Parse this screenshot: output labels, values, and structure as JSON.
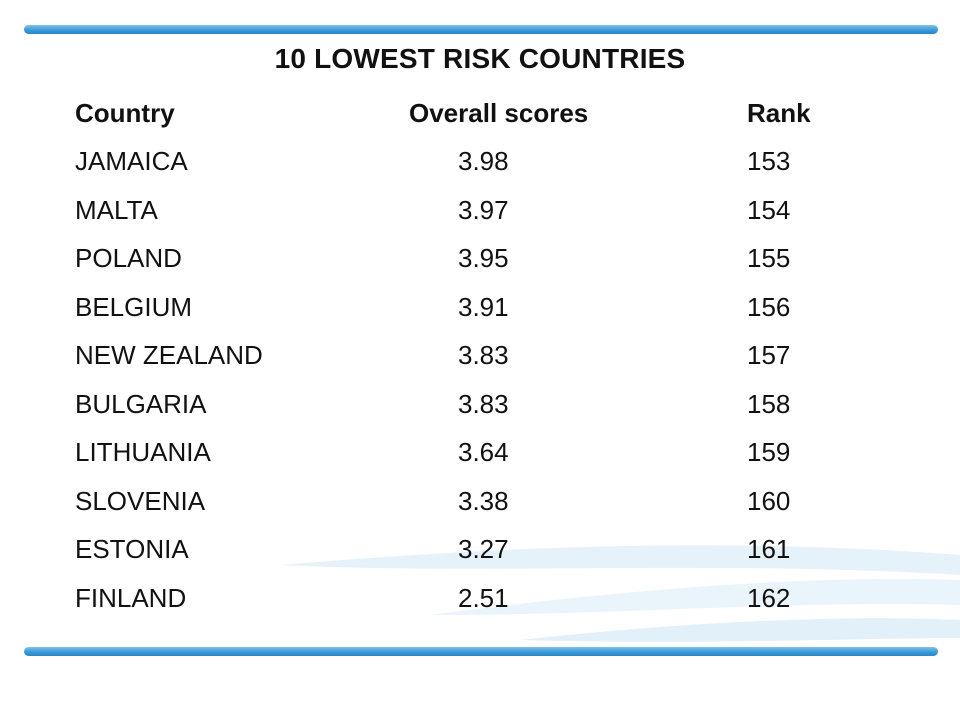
{
  "title": "10 LOWEST RISK COUNTRIES",
  "table": {
    "headers": {
      "country": "Country",
      "score": "Overall scores",
      "rank": "Rank"
    },
    "rows": [
      {
        "country": "JAMAICA",
        "score": "3.98",
        "rank": "153"
      },
      {
        "country": "MALTA",
        "score": "3.97",
        "rank": "154"
      },
      {
        "country": "POLAND",
        "score": "3.95",
        "rank": "155"
      },
      {
        "country": "BELGIUM",
        "score": "3.91",
        "rank": "156"
      },
      {
        "country": "NEW ZEALAND",
        "score": "3.83",
        "rank": "157"
      },
      {
        "country": "BULGARIA",
        "score": "3.83",
        "rank": "158"
      },
      {
        "country": "LITHUANIA",
        "score": "3.64",
        "rank": "159"
      },
      {
        "country": "SLOVENIA",
        "score": "3.38",
        "rank": "160"
      },
      {
        "country": "ESTONIA",
        "score": "3.27",
        "rank": "161"
      },
      {
        "country": "FINLAND",
        "score": "2.51",
        "rank": "162"
      }
    ]
  },
  "colors": {
    "accent": "#3a9ad8",
    "accent_light": "#7fc3ec",
    "wave": "#e3f1fa"
  }
}
